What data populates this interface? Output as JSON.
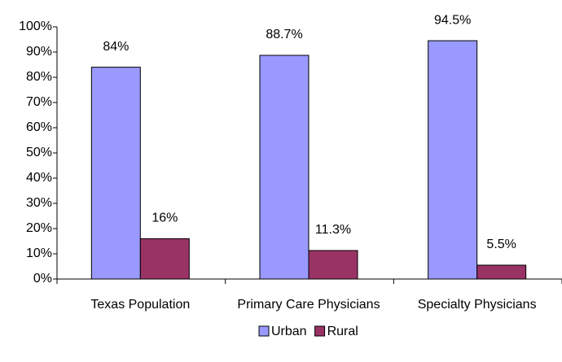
{
  "chart_data": {
    "type": "bar",
    "categories": [
      "Texas Population",
      "Primary Care Physicians",
      "Specialty Physicians"
    ],
    "series": [
      {
        "name": "Urban",
        "color": "#9999ff",
        "values": [
          84,
          88.7,
          94.5
        ],
        "value_labels": [
          "84%",
          "88.7%",
          "94.5%"
        ]
      },
      {
        "name": "Rural",
        "color": "#993366",
        "values": [
          16,
          11.3,
          5.5
        ],
        "value_labels": [
          "16%",
          "11.3%",
          "5.5%"
        ]
      }
    ],
    "ylim": [
      0,
      100
    ],
    "yticks": [
      {
        "value": 0,
        "label": "0%"
      },
      {
        "value": 10,
        "label": "10%"
      },
      {
        "value": 20,
        "label": "20%"
      },
      {
        "value": 30,
        "label": "30%"
      },
      {
        "value": 40,
        "label": "40%"
      },
      {
        "value": 50,
        "label": "50%"
      },
      {
        "value": 60,
        "label": "60%"
      },
      {
        "value": 70,
        "label": "70%"
      },
      {
        "value": 80,
        "label": "80%"
      },
      {
        "value": 90,
        "label": "90%"
      },
      {
        "value": 100,
        "label": "100%"
      }
    ],
    "grid": false,
    "legend": "bottom"
  }
}
